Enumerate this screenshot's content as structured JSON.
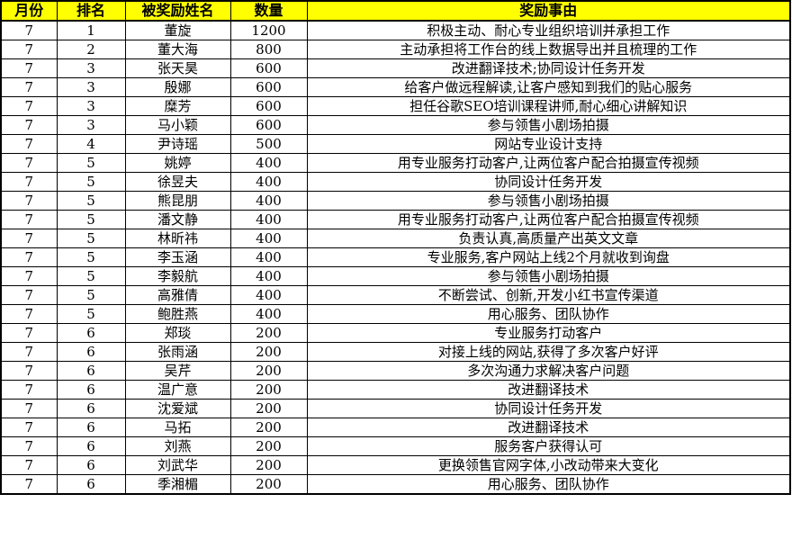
{
  "colors": {
    "header_bg": "#FFFF00",
    "border": "#000000",
    "text": "#000000",
    "body_bg": "#FFFFFF"
  },
  "table": {
    "columns": [
      "月份",
      "排名",
      "被奖励姓名",
      "数量",
      "奖励事由"
    ],
    "rows": [
      {
        "month": "7",
        "rank": "1",
        "name": "董旋",
        "amount": "1200",
        "reason": "积极主动、耐心专业组织培训并承担工作"
      },
      {
        "month": "7",
        "rank": "2",
        "name": "董大海",
        "amount": "800",
        "reason": "主动承担将工作台的线上数据导出并且梳理的工作"
      },
      {
        "month": "7",
        "rank": "3",
        "name": "张天昊",
        "amount": "600",
        "reason": "改进翻译技术;协同设计任务开发"
      },
      {
        "month": "7",
        "rank": "3",
        "name": "殷娜",
        "amount": "600",
        "reason": "给客户做远程解读,让客户感知到我们的贴心服务"
      },
      {
        "month": "7",
        "rank": "3",
        "name": "糜芳",
        "amount": "600",
        "reason": "担任谷歌SEO培训课程讲师,耐心细心讲解知识"
      },
      {
        "month": "7",
        "rank": "3",
        "name": "马小颖",
        "amount": "600",
        "reason": "参与领售小剧场拍摄"
      },
      {
        "month": "7",
        "rank": "4",
        "name": "尹诗瑶",
        "amount": "500",
        "reason": "网站专业设计支持"
      },
      {
        "month": "7",
        "rank": "5",
        "name": "姚婷",
        "amount": "400",
        "reason": "用专业服务打动客户,让两位客户配合拍摄宣传视频"
      },
      {
        "month": "7",
        "rank": "5",
        "name": "徐昱夫",
        "amount": "400",
        "reason": "协同设计任务开发"
      },
      {
        "month": "7",
        "rank": "5",
        "name": "熊昆朋",
        "amount": "400",
        "reason": "参与领售小剧场拍摄"
      },
      {
        "month": "7",
        "rank": "5",
        "name": "潘文静",
        "amount": "400",
        "reason": "用专业服务打动客户,让两位客户配合拍摄宣传视频"
      },
      {
        "month": "7",
        "rank": "5",
        "name": "林昕祎",
        "amount": "400",
        "reason": "负责认真,高质量产出英文文章"
      },
      {
        "month": "7",
        "rank": "5",
        "name": "李玉涵",
        "amount": "400",
        "reason": "专业服务,客户网站上线2个月就收到询盘"
      },
      {
        "month": "7",
        "rank": "5",
        "name": "李毅航",
        "amount": "400",
        "reason": "参与领售小剧场拍摄"
      },
      {
        "month": "7",
        "rank": "5",
        "name": "高雅倩",
        "amount": "400",
        "reason": "不断尝试、创新,开发小红书宣传渠道"
      },
      {
        "month": "7",
        "rank": "5",
        "name": "鲍胜燕",
        "amount": "400",
        "reason": "用心服务、团队协作"
      },
      {
        "month": "7",
        "rank": "6",
        "name": "郑琰",
        "amount": "200",
        "reason": "专业服务打动客户"
      },
      {
        "month": "7",
        "rank": "6",
        "name": "张雨涵",
        "amount": "200",
        "reason": "对接上线的网站,获得了多次客户好评"
      },
      {
        "month": "7",
        "rank": "6",
        "name": "吴芹",
        "amount": "200",
        "reason": "多次沟通力求解决客户问题"
      },
      {
        "month": "7",
        "rank": "6",
        "name": "温广意",
        "amount": "200",
        "reason": "改进翻译技术"
      },
      {
        "month": "7",
        "rank": "6",
        "name": "沈爱斌",
        "amount": "200",
        "reason": "协同设计任务开发"
      },
      {
        "month": "7",
        "rank": "6",
        "name": "马拓",
        "amount": "200",
        "reason": "改进翻译技术"
      },
      {
        "month": "7",
        "rank": "6",
        "name": "刘燕",
        "amount": "200",
        "reason": "服务客户获得认可"
      },
      {
        "month": "7",
        "rank": "6",
        "name": "刘武华",
        "amount": "200",
        "reason": "更换领售官网字体,小改动带来大变化"
      },
      {
        "month": "7",
        "rank": "6",
        "name": "季湘楣",
        "amount": "200",
        "reason": "用心服务、团队协作"
      }
    ]
  }
}
